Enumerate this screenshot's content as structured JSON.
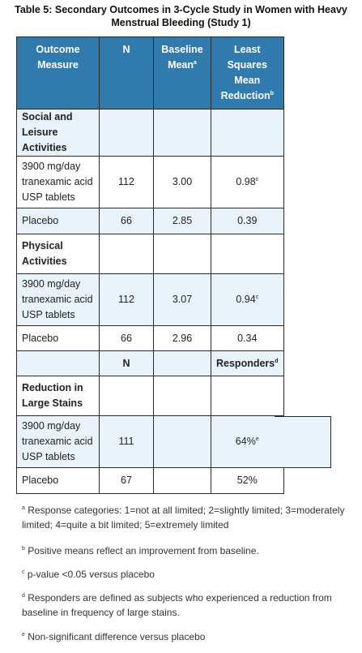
{
  "title_line1": "Table 5: Secondary Outcomes in 3-Cycle Study in Women with Heavy",
  "title_line2": "Menstrual Bleeding (Study 1)",
  "header": {
    "col1": "Outcome Measure",
    "col2": "N",
    "col3": "Baseline Mean",
    "col3_sup": "a",
    "col4": "Least Squares Mean Reduction",
    "col4_sup": "b"
  },
  "sections": {
    "social": "Social and Leisure Activities",
    "physical": "Physical Activities",
    "stains": "Reduction in Large Stains"
  },
  "rows": {
    "social_drug": {
      "label": "3900 mg/day tranexamic acid USP tablets",
      "n": "112",
      "baseline": "3.00",
      "reduction": "0.98",
      "sup": "c"
    },
    "social_placebo": {
      "label": "Placebo",
      "n": "66",
      "baseline": "2.85",
      "reduction": "0.39"
    },
    "physical_drug": {
      "label": "3900 mg/day tranexamic acid USP tablets",
      "n": "112",
      "baseline": "3.07",
      "reduction": "0.94",
      "sup": "c"
    },
    "physical_placebo": {
      "label": "Placebo",
      "n": "66",
      "baseline": "2.96",
      "reduction": "0.34"
    }
  },
  "subheader": {
    "n": "N",
    "responders": "Responders",
    "responders_sup": "d"
  },
  "stain_rows": {
    "drug": {
      "label": "3900 mg/day tranexamic acid USP tablets",
      "n": "111",
      "value": "64%",
      "sup": "e"
    },
    "placebo": {
      "label": "Placebo",
      "n": "67",
      "value": "52%"
    }
  },
  "footnotes": {
    "a": {
      "mark": "a",
      "text": "Response categories: 1=not at all limited; 2=slightly limited; 3=moderately limited; 4=quite a bit limited; 5=extremely limited"
    },
    "b": {
      "mark": "b",
      "text": "Positive means reflect an improvement from baseline."
    },
    "c": {
      "mark": "c",
      "text": "p-value <0.05 versus placebo"
    },
    "d": {
      "mark": "d",
      "text": "Responders are defined as subjects who experienced a reduction from baseline in frequency of large stains."
    },
    "e": {
      "mark": "e",
      "text": "Non-significant difference versus placebo"
    }
  }
}
